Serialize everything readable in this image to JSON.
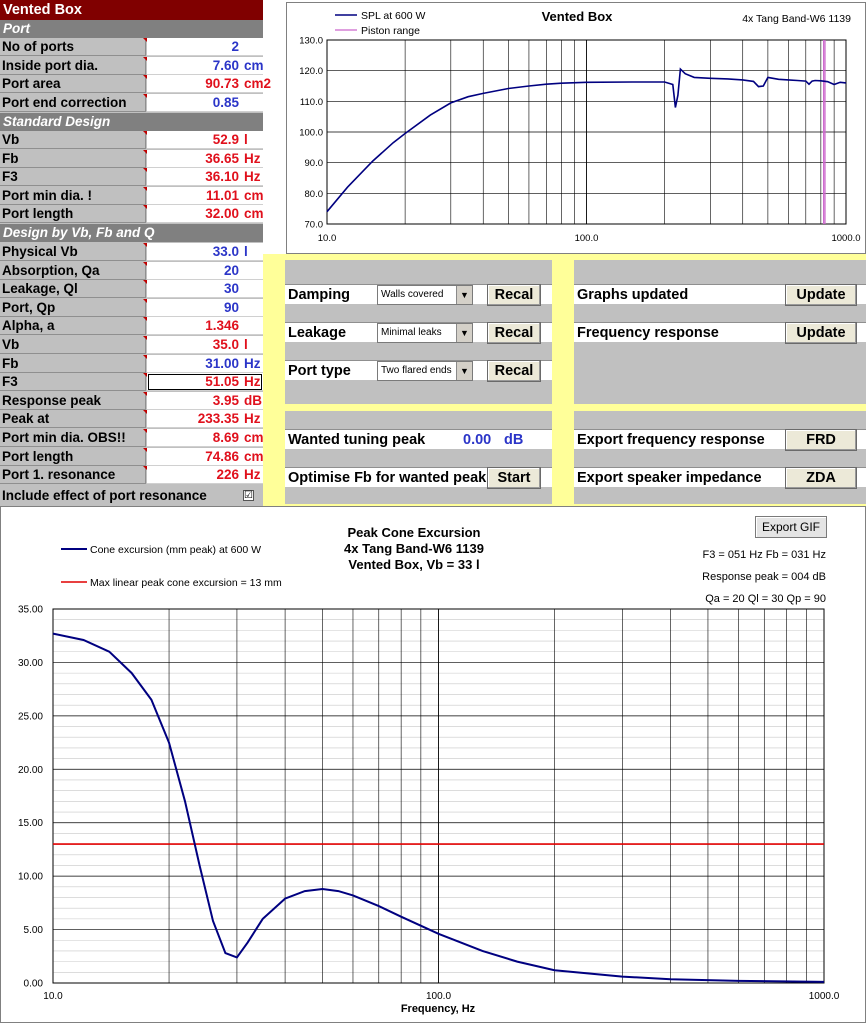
{
  "left_panel": {
    "title": "Vented Box",
    "port_section": "Port",
    "port_rows": [
      {
        "label": "No of ports",
        "value": "2",
        "unit": "",
        "color": "blue"
      },
      {
        "label": "Inside port dia.",
        "value": "7.60",
        "unit": "cm",
        "color": "blue"
      },
      {
        "label": "Port area",
        "value": "90.73",
        "unit": "cm2",
        "color": "red"
      },
      {
        "label": "Port end correction",
        "value": "0.85",
        "unit": "",
        "color": "blue"
      }
    ],
    "standard_section": "Standard Design",
    "standard_rows": [
      {
        "label": "Vb",
        "value": "52.9",
        "unit": "l",
        "color": "red"
      },
      {
        "label": "Fb",
        "value": "36.65",
        "unit": "Hz",
        "color": "red"
      },
      {
        "label": "F3",
        "value": "36.10",
        "unit": "Hz",
        "color": "red"
      },
      {
        "label": "Port min dia. !",
        "value": "11.01",
        "unit": "cm",
        "color": "red"
      },
      {
        "label": "Port length",
        "value": "32.00",
        "unit": "cm",
        "color": "red"
      }
    ],
    "design_section": "Design by Vb, Fb and Q",
    "design_rows": [
      {
        "label": "Physical Vb",
        "value": "33.0",
        "unit": "l",
        "color": "blue"
      },
      {
        "label": "Absorption, Qa",
        "value": "20",
        "unit": "",
        "color": "blue"
      },
      {
        "label": "Leakage, Ql",
        "value": "30",
        "unit": "",
        "color": "blue"
      },
      {
        "label": "Port, Qp",
        "value": "90",
        "unit": "",
        "color": "blue"
      },
      {
        "label": "Alpha, a",
        "value": "1.346",
        "unit": "",
        "color": "red"
      },
      {
        "label": "Vb",
        "value": "35.0",
        "unit": "l",
        "color": "red"
      },
      {
        "label": "Fb",
        "value": "31.00",
        "unit": "Hz",
        "color": "blue"
      },
      {
        "label": "F3",
        "value": "51.05",
        "unit": "Hz",
        "color": "red"
      },
      {
        "label": "Response peak",
        "value": "3.95",
        "unit": "dB",
        "color": "red"
      },
      {
        "label": "Peak at",
        "value": "233.35",
        "unit": "Hz",
        "color": "red"
      },
      {
        "label": "Port min dia. OBS!!",
        "value": "8.69",
        "unit": "cm",
        "color": "red"
      },
      {
        "label": "Port length",
        "value": "74.86",
        "unit": "cm",
        "color": "red"
      },
      {
        "label": "Port 1. resonance",
        "value": "226",
        "unit": "Hz",
        "color": "red"
      }
    ],
    "include_resonance_label": "Include effect of port resonance",
    "include_resonance_checked": "☑"
  },
  "spl_chart": {
    "chart_data": {
      "type": "line",
      "title": "Vented Box",
      "subtitle": "4x Tang Band-W6  1139",
      "x_scale": "log",
      "xlim": [
        10,
        1000
      ],
      "ylim": [
        70,
        130
      ],
      "x_ticks": [
        "10.0",
        "100.0",
        "1000.0"
      ],
      "y_ticks": [
        "70.0",
        "80.0",
        "90.0",
        "100.0",
        "110.0",
        "120.0",
        "130.0"
      ],
      "legend": [
        "SPL at 600 W",
        "Piston range"
      ],
      "series": [
        {
          "name": "SPL at 600 W",
          "color": "#000080",
          "x": [
            10,
            12,
            15,
            18,
            20,
            25,
            30,
            35,
            40,
            50,
            60,
            70,
            80,
            100,
            150,
            200,
            215,
            220,
            225,
            230,
            240,
            260,
            300,
            350,
            400,
            440,
            460,
            480,
            500,
            550,
            600,
            650,
            700,
            720,
            740,
            760,
            800,
            850,
            900,
            950,
            1000
          ],
          "y": [
            74,
            82,
            90.5,
            96.5,
            99.5,
            105.5,
            109.5,
            111.5,
            112.6,
            114.2,
            115.0,
            115.6,
            115.9,
            116.2,
            116.3,
            116.3,
            115.5,
            108.0,
            112.0,
            120.5,
            119.0,
            117.8,
            117.5,
            117.3,
            117.0,
            116.5,
            114.8,
            115.0,
            117.8,
            117.2,
            117.0,
            116.8,
            116.6,
            115.6,
            116.6,
            116.8,
            116.7,
            116.4,
            115.5,
            116.2,
            116.0
          ]
        },
        {
          "name": "Piston range",
          "color": "#cc66cc",
          "x": [
            820,
            830
          ],
          "vertical": true
        }
      ]
    }
  },
  "controls": {
    "left_rows": [
      {
        "label": "Damping",
        "select": "Walls covered",
        "button": "Recal"
      },
      {
        "label": "Leakage",
        "select": "Minimal leaks",
        "button": "Recal"
      },
      {
        "label": "Port type",
        "select": "Two flared ends",
        "button": "Recal"
      }
    ],
    "right_rows": [
      {
        "label": "Graphs updated",
        "button": "Update"
      },
      {
        "label": "Frequency response",
        "button": "Update"
      }
    ],
    "wanted_peak_label": "Wanted tuning peak",
    "wanted_peak_value": "0.00",
    "wanted_peak_unit": "dB",
    "optimise_label": "Optimise Fb for wanted peak",
    "optimise_button": "Start",
    "export_fr_label": "Export frequency response",
    "export_fr_button": "FRD",
    "export_imp_label": "Export speaker impedance",
    "export_imp_button": "ZDA",
    "dropdown_arrow": "▼"
  },
  "excursion_chart": {
    "export_button": "Export GIF",
    "info_lines": [
      "F3 = 051 Hz  Fb = 031 Hz",
      "Response peak = 004 dB",
      "Qa = 20  Ql = 30  Qp = 90"
    ],
    "chart_data": {
      "type": "line",
      "title": "Peak Cone Excursion",
      "subtitle_lines": [
        "4x Tang Band-W6 1139",
        "Vented Box, Vb = 33 l"
      ],
      "xlabel": "Frequency, Hz",
      "x_scale": "log",
      "xlim": [
        10,
        1000
      ],
      "ylim": [
        0,
        35
      ],
      "x_ticks": [
        "10.0",
        "100.0",
        "1000.0"
      ],
      "y_ticks": [
        "0.00",
        "5.00",
        "10.00",
        "15.00",
        "20.00",
        "25.00",
        "30.00",
        "35.00"
      ],
      "legend": [
        "Cone excursion (mm peak) at 600 W",
        "Max linear peak cone excursion = 13 mm"
      ],
      "series": [
        {
          "name": "Cone excursion (mm peak) at 600 W",
          "color": "#000080",
          "x": [
            10,
            12,
            14,
            16,
            18,
            20,
            22,
            24,
            26,
            28,
            30,
            32,
            35,
            40,
            45,
            50,
            55,
            60,
            70,
            80,
            100,
            130,
            160,
            200,
            300,
            400,
            600,
            1000
          ],
          "y": [
            32.7,
            32.1,
            31.0,
            29.0,
            26.5,
            22.5,
            17.0,
            11.0,
            5.8,
            2.8,
            2.4,
            3.8,
            6.0,
            7.9,
            8.6,
            8.8,
            8.6,
            8.2,
            7.2,
            6.2,
            4.6,
            3.0,
            2.0,
            1.2,
            0.6,
            0.35,
            0.2,
            0.1
          ]
        },
        {
          "name": "Max linear peak cone excursion = 13 mm",
          "color": "#e00000",
          "constant": 13
        }
      ]
    }
  }
}
